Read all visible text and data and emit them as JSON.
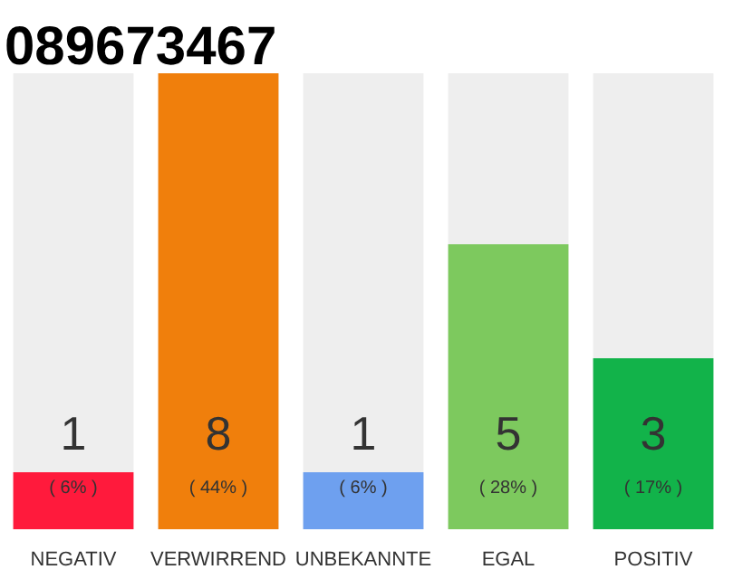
{
  "chart_data": {
    "type": "bar",
    "title": "089673467",
    "categories": [
      "NEGATIV",
      "VERWIRREND",
      "UNBEKANNTE",
      "EGAL",
      "POSITIV"
    ],
    "values": [
      1,
      8,
      1,
      5,
      3
    ],
    "colors": [
      "#ff1a3c",
      "#f07f0c",
      "#6ea0ef",
      "#7dc95e",
      "#12b34a"
    ],
    "data_labels": true,
    "annotations": [
      "( 6% )",
      "( 44% )",
      "( 6% )",
      "( 28% )",
      "( 17% )"
    ],
    "grid": false
  }
}
